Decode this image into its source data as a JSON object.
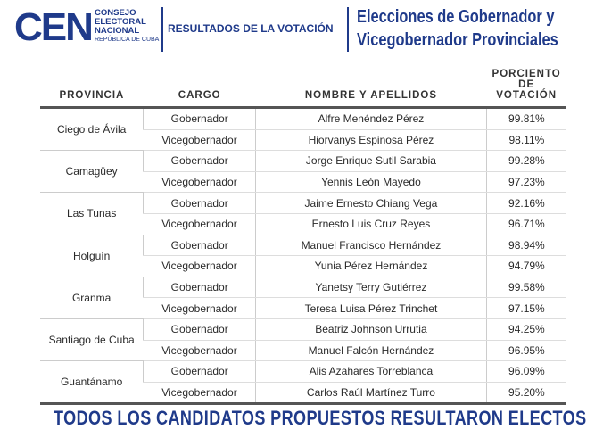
{
  "header": {
    "logo": "CEN",
    "org_lines": [
      "CONSEJO",
      "ELECTORAL",
      "NACIONAL"
    ],
    "org_sub": "REPÚBLICA DE CUBA",
    "section": "RESULTADOS DE LA VOTACIÓN",
    "title_lines": [
      "Elecciones de Gobernador y",
      "Vicegobernador Provinciales"
    ]
  },
  "table": {
    "columns": [
      "PROVINCIA",
      "CARGO",
      "NOMBRE Y APELLIDOS",
      "PORCIENTO DE VOTACIÓN"
    ],
    "groups": [
      {
        "province": "Ciego de Ávila",
        "rows": [
          [
            "Gobernador",
            "Alfre Menéndez Pérez",
            "99.81%"
          ],
          [
            "Vicegobernador",
            "Hiorvanys  Espinosa Pérez",
            "98.11%"
          ]
        ]
      },
      {
        "province": "Camagüey",
        "rows": [
          [
            "Gobernador",
            "Jorge Enrique Sutil Sarabia",
            "99.28%"
          ],
          [
            "Vicegobernador",
            "Yennis León Mayedo",
            "97.23%"
          ]
        ]
      },
      {
        "province": "Las Tunas",
        "rows": [
          [
            "Gobernador",
            "Jaime Ernesto Chiang Vega",
            "92.16%"
          ],
          [
            "Vicegobernador",
            "Ernesto Luis Cruz Reyes",
            "96.71%"
          ]
        ]
      },
      {
        "province": "Holguín",
        "rows": [
          [
            "Gobernador",
            "Manuel Francisco Hernández",
            "98.94%"
          ],
          [
            "Vicegobernador",
            "Yunia Pérez Hernández",
            "94.79%"
          ]
        ]
      },
      {
        "province": "Granma",
        "rows": [
          [
            "Gobernador",
            "Yanetsy Terry Gutiérrez",
            "99.58%"
          ],
          [
            "Vicegobernador",
            "Teresa Luisa Pérez Trinchet",
            "97.15%"
          ]
        ]
      },
      {
        "province": "Santiago de Cuba",
        "rows": [
          [
            "Gobernador",
            "Beatriz Johnson Urrutia",
            "94.25%"
          ],
          [
            "Vicegobernador",
            "Manuel Falcón Hernández",
            "96.95%"
          ]
        ]
      },
      {
        "province": "Guantánamo",
        "rows": [
          [
            "Gobernador",
            "Alis Azahares Torreblanca",
            "96.09%"
          ],
          [
            "Vicegobernador",
            "Carlos Raúl Martínez Turro",
            "95.20%"
          ]
        ]
      }
    ]
  },
  "footer": "TODOS LOS CANDIDATOS PROPUESTOS RESULTARON ELECTOS"
}
